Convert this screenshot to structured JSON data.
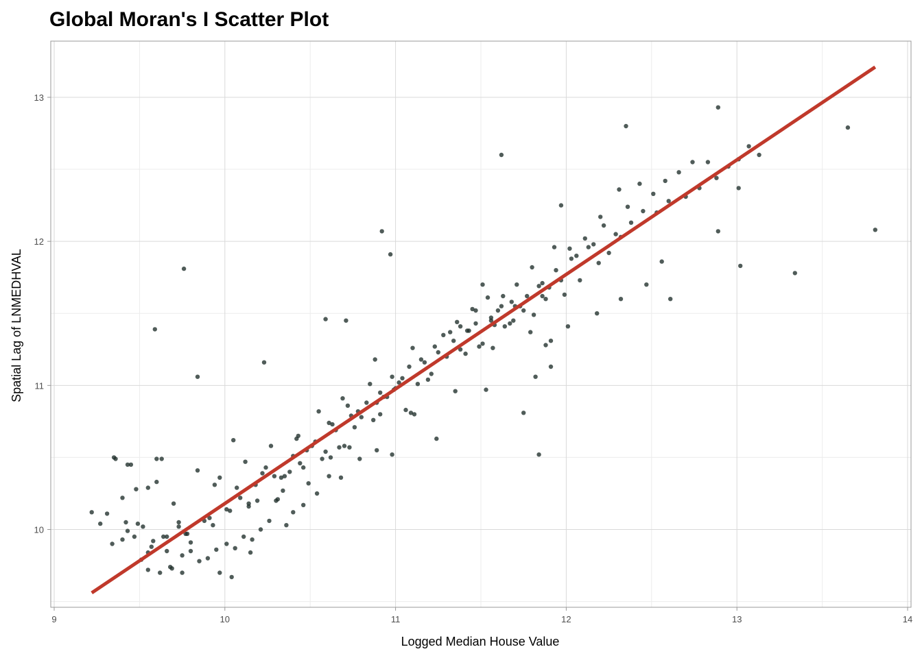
{
  "chart_data": {
    "type": "scatter",
    "title": "Global Moran's I Scatter Plot",
    "xlabel": "Logged Median House Value",
    "ylabel": "Spatial Lag of LNMEDHVAL",
    "xlim": [
      8.98,
      14.02
    ],
    "ylim": [
      9.46,
      13.39
    ],
    "x_ticks": [
      "9",
      "10",
      "11",
      "12",
      "13",
      "14"
    ],
    "y_ticks": [
      "10",
      "11",
      "12",
      "13"
    ],
    "x_tick_values": [
      9,
      10,
      11,
      12,
      13,
      14
    ],
    "y_tick_values": [
      10,
      11,
      12,
      13
    ],
    "grid": true,
    "colors": {
      "points": "#1f2e2a",
      "fit_line": "#c0392b",
      "grid": "#d9d9d9",
      "axis": "#999999"
    },
    "fit_line": {
      "x": [
        9.22,
        13.81
      ],
      "y": [
        9.56,
        13.21
      ]
    },
    "points": {
      "x": [
        9.22,
        9.31,
        9.36,
        9.4,
        9.45,
        9.48,
        9.52,
        9.55,
        9.57,
        9.6,
        9.63,
        9.66,
        9.7,
        9.73,
        9.77,
        9.8,
        9.84,
        9.88,
        9.93,
        9.97,
        10.01,
        10.05,
        10.09,
        10.14,
        10.18,
        10.22,
        10.27,
        10.31,
        10.35,
        10.4,
        10.44,
        10.48,
        10.53,
        10.57,
        10.61,
        10.65,
        10.7,
        10.74,
        10.78,
        10.83,
        10.87,
        10.91,
        10.95,
        11.0,
        11.04,
        11.08,
        11.13,
        11.17,
        11.21,
        11.25,
        11.3,
        11.34,
        11.38,
        11.43,
        11.47,
        11.51,
        11.56,
        11.6,
        11.64,
        11.68,
        11.73,
        11.77,
        11.81,
        11.86,
        11.9,
        11.94,
        11.99,
        12.03,
        12.08,
        12.13,
        12.19,
        12.25,
        12.32,
        12.38,
        12.45,
        12.53,
        12.6,
        12.7,
        12.78,
        12.88,
        12.95,
        13.01,
        13.07,
        13.13,
        13.34,
        13.65,
        13.81,
        9.59,
        9.76,
        9.84,
        9.35,
        9.6,
        9.43,
        10.23,
        10.33,
        10.92,
        10.97,
        10.59,
        10.71,
        10.88,
        11.62,
        11.97,
        12.35,
        12.89,
        12.89,
        13.02,
        13.01,
        11.84,
        11.75,
        11.11,
        10.91,
        10.99,
        10.69,
        10.62,
        10.43,
        10.14,
        10.15,
        9.97,
        10.04,
        9.78,
        9.55,
        9.75,
        12.2,
        12.31,
        12.18,
        12.32,
        12.47,
        12.61,
        12.56,
        12.83,
        11.51,
        11.47,
        11.38,
        11.42,
        11.56,
        11.57,
        11.63,
        11.7,
        11.79,
        11.88,
        11.91,
        12.01,
        11.91,
        11.82,
        11.86,
        11.69,
        11.53,
        11.35,
        11.24,
        11.09,
        10.98,
        10.89,
        10.79,
        10.73,
        10.68,
        10.61,
        10.54,
        10.49,
        10.46,
        10.4,
        10.36,
        10.3,
        10.26,
        10.21,
        10.16,
        10.11,
        10.06,
        10.01,
        9.95,
        9.9,
        9.85,
        9.8,
        9.75,
        9.69,
        9.66,
        9.62,
        9.58,
        9.55,
        9.51,
        9.47,
        9.43,
        9.4,
        9.34,
        9.27,
        9.42,
        9.49,
        9.64,
        9.68,
        9.73,
        9.91,
        9.94,
        10.03,
        10.07,
        10.12,
        10.19,
        10.24,
        10.29,
        10.34,
        10.38,
        10.42,
        10.46,
        10.51,
        10.55,
        10.59,
        10.63,
        10.67,
        10.72,
        10.76,
        10.8,
        10.85,
        10.89,
        10.93,
        10.98,
        11.02,
        11.06,
        11.1,
        11.15,
        11.19,
        11.23,
        11.28,
        11.32,
        11.36,
        11.41,
        11.45,
        11.49,
        11.54,
        11.58,
        11.62,
        11.67,
        11.71,
        11.75,
        11.8,
        11.84,
        11.88,
        11.93,
        11.97,
        12.02,
        12.06,
        12.11,
        12.16,
        12.22,
        12.29,
        12.36,
        12.43,
        12.51,
        12.58,
        12.66,
        12.74
      ],
      "y": [
        10.12,
        10.11,
        10.49,
        10.22,
        10.45,
        10.28,
        10.02,
        10.29,
        9.88,
        10.33,
        10.49,
        9.95,
        10.18,
        10.05,
        9.97,
        9.85,
        10.41,
        10.06,
        10.03,
        10.36,
        10.14,
        10.62,
        10.22,
        10.18,
        10.31,
        10.39,
        10.58,
        10.21,
        10.37,
        10.51,
        10.46,
        10.55,
        10.61,
        10.49,
        10.74,
        10.69,
        10.58,
        10.79,
        10.82,
        10.88,
        10.76,
        10.95,
        10.92,
        10.98,
        11.05,
        11.13,
        11.01,
        11.16,
        11.08,
        11.23,
        11.2,
        11.31,
        11.25,
        11.38,
        11.43,
        11.29,
        11.47,
        11.52,
        11.41,
        11.58,
        11.55,
        11.62,
        11.49,
        11.71,
        11.68,
        11.8,
        11.63,
        11.88,
        11.73,
        11.96,
        11.85,
        11.92,
        12.03,
        12.13,
        12.21,
        12.2,
        12.28,
        12.31,
        12.37,
        12.44,
        12.52,
        12.57,
        12.66,
        12.6,
        11.78,
        12.79,
        12.08,
        11.39,
        11.81,
        11.06,
        10.5,
        10.49,
        10.45,
        11.16,
        10.36,
        12.07,
        11.91,
        11.46,
        11.45,
        11.18,
        12.6,
        12.25,
        12.8,
        12.93,
        12.07,
        11.83,
        12.37,
        10.52,
        10.81,
        10.8,
        10.8,
        10.97,
        10.91,
        10.5,
        10.65,
        10.16,
        9.84,
        9.7,
        9.67,
        9.97,
        9.72,
        9.7,
        12.17,
        12.36,
        11.5,
        11.6,
        11.7,
        11.6,
        11.86,
        12.55,
        11.7,
        11.52,
        11.41,
        11.38,
        11.45,
        11.26,
        11.62,
        11.55,
        11.37,
        11.28,
        11.31,
        11.41,
        11.13,
        11.06,
        11.62,
        11.45,
        10.97,
        10.96,
        10.63,
        10.81,
        10.52,
        10.55,
        10.49,
        10.57,
        10.36,
        10.37,
        10.25,
        10.32,
        10.17,
        10.12,
        10.03,
        10.2,
        10.06,
        10.0,
        9.93,
        9.95,
        9.87,
        9.9,
        9.86,
        9.8,
        9.78,
        9.91,
        9.82,
        9.73,
        9.85,
        9.7,
        9.92,
        9.84,
        9.79,
        9.95,
        9.99,
        9.93,
        9.9,
        10.04,
        10.05,
        10.04,
        9.95,
        9.74,
        10.02,
        10.08,
        10.31,
        10.13,
        10.29,
        10.47,
        10.2,
        10.43,
        10.37,
        10.27,
        10.4,
        10.63,
        10.43,
        10.58,
        10.82,
        10.54,
        10.73,
        10.57,
        10.86,
        10.71,
        10.78,
        11.01,
        10.88,
        10.92,
        11.06,
        11.02,
        10.83,
        11.26,
        11.18,
        11.04,
        11.27,
        11.35,
        11.37,
        11.44,
        11.22,
        11.53,
        11.27,
        11.61,
        11.42,
        11.55,
        11.43,
        11.7,
        11.52,
        11.82,
        11.69,
        11.6,
        11.96,
        11.73,
        11.95,
        11.9,
        12.02,
        11.98,
        12.11,
        12.05,
        12.24,
        12.4,
        12.33,
        12.42,
        12.48,
        12.55
      ]
    }
  }
}
